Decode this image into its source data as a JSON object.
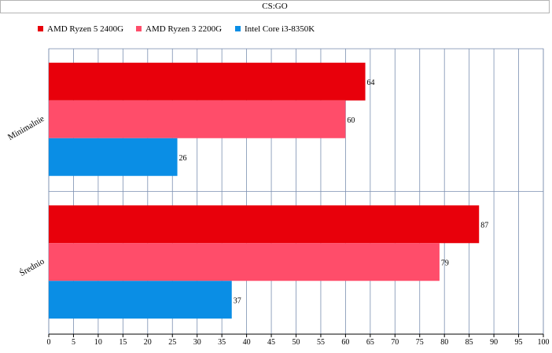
{
  "chart_data": {
    "type": "bar",
    "orientation": "horizontal",
    "title": "CS:GO",
    "categories": [
      "Minimalnie",
      "Średnio"
    ],
    "series": [
      {
        "name": "AMD Ryzen 5 2400G",
        "color": "#e8000b",
        "values": [
          64,
          87
        ]
      },
      {
        "name": "AMD Ryzen 3 2200G",
        "color": "#ff4d6a",
        "values": [
          60,
          79
        ]
      },
      {
        "name": "Intel Core i3-8350K",
        "color": "#0a8ee5",
        "values": [
          26,
          37
        ]
      }
    ],
    "xlim": [
      0,
      100
    ],
    "xticks": [
      0,
      5,
      10,
      15,
      20,
      25,
      30,
      35,
      40,
      45,
      50,
      55,
      60,
      65,
      70,
      75,
      80,
      85,
      90,
      95,
      100
    ],
    "xlabel": "",
    "ylabel": "",
    "legend_position": "top-left",
    "grid": true,
    "data_labels": true
  }
}
